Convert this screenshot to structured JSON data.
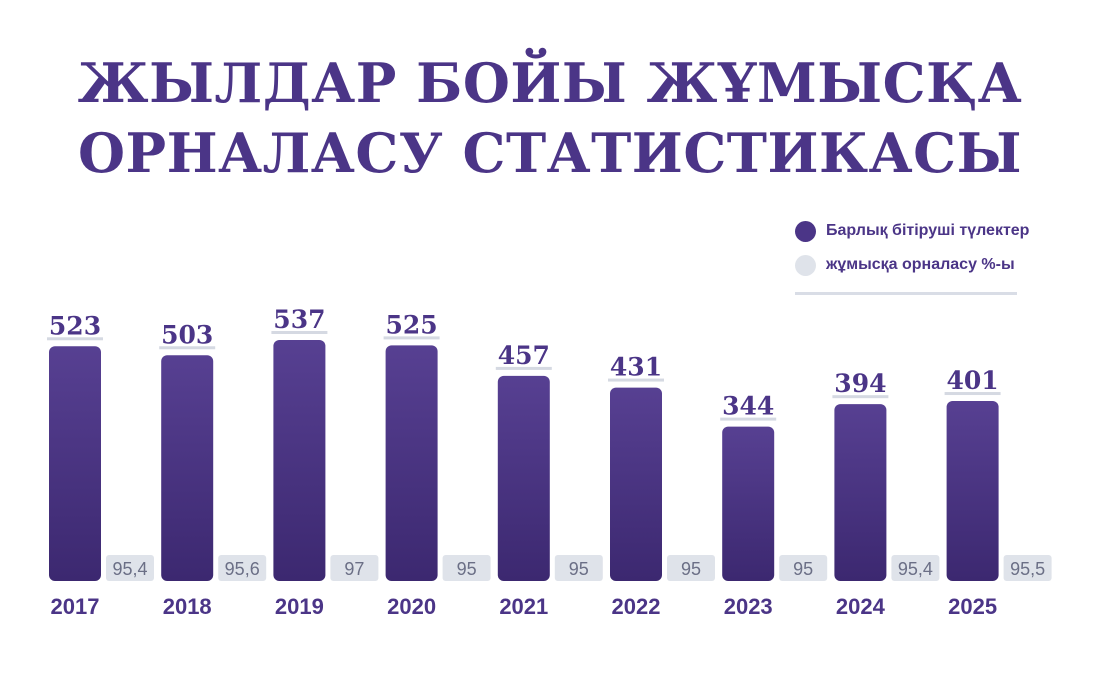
{
  "title_lines": [
    "ЖЫЛДАР БОЙЫ ЖҰМЫСҚА",
    "ОРНАЛАСУ СТАТИСТИКАСЫ"
  ],
  "colors": {
    "bar_top": "#574092",
    "bar_bottom": "#3c2870",
    "pct_bg": "#dfe3ea",
    "pct_text": "#6b6f86",
    "accent": "#4b3587",
    "label_line": "#d5d9e2"
  },
  "chart_data": {
    "type": "bar",
    "title": "ЖЫЛДАР БОЙЫ ЖҰМЫСҚА ОРНАЛАСУ СТАТИСТИКАСЫ",
    "categories": [
      "2017",
      "2018",
      "2019",
      "2020",
      "2021",
      "2022",
      "2023",
      "2024",
      "2025"
    ],
    "series": [
      {
        "name": "Барлық бітіруші түлектер",
        "values": [
          523,
          503,
          537,
          525,
          457,
          431,
          344,
          394,
          401
        ],
        "color": "#4b3587"
      },
      {
        "name": "жұмысқа орналасу %-ы",
        "values": [
          95.4,
          95.6,
          97,
          95,
          95,
          95,
          95,
          95.4,
          95.5
        ],
        "labels": [
          "95,4",
          "95,6",
          "97",
          "95",
          "95",
          "95",
          "95",
          "95,4",
          "95,5"
        ],
        "color": "#dfe3ea"
      }
    ],
    "legend_position": "top-right",
    "grid": false
  }
}
